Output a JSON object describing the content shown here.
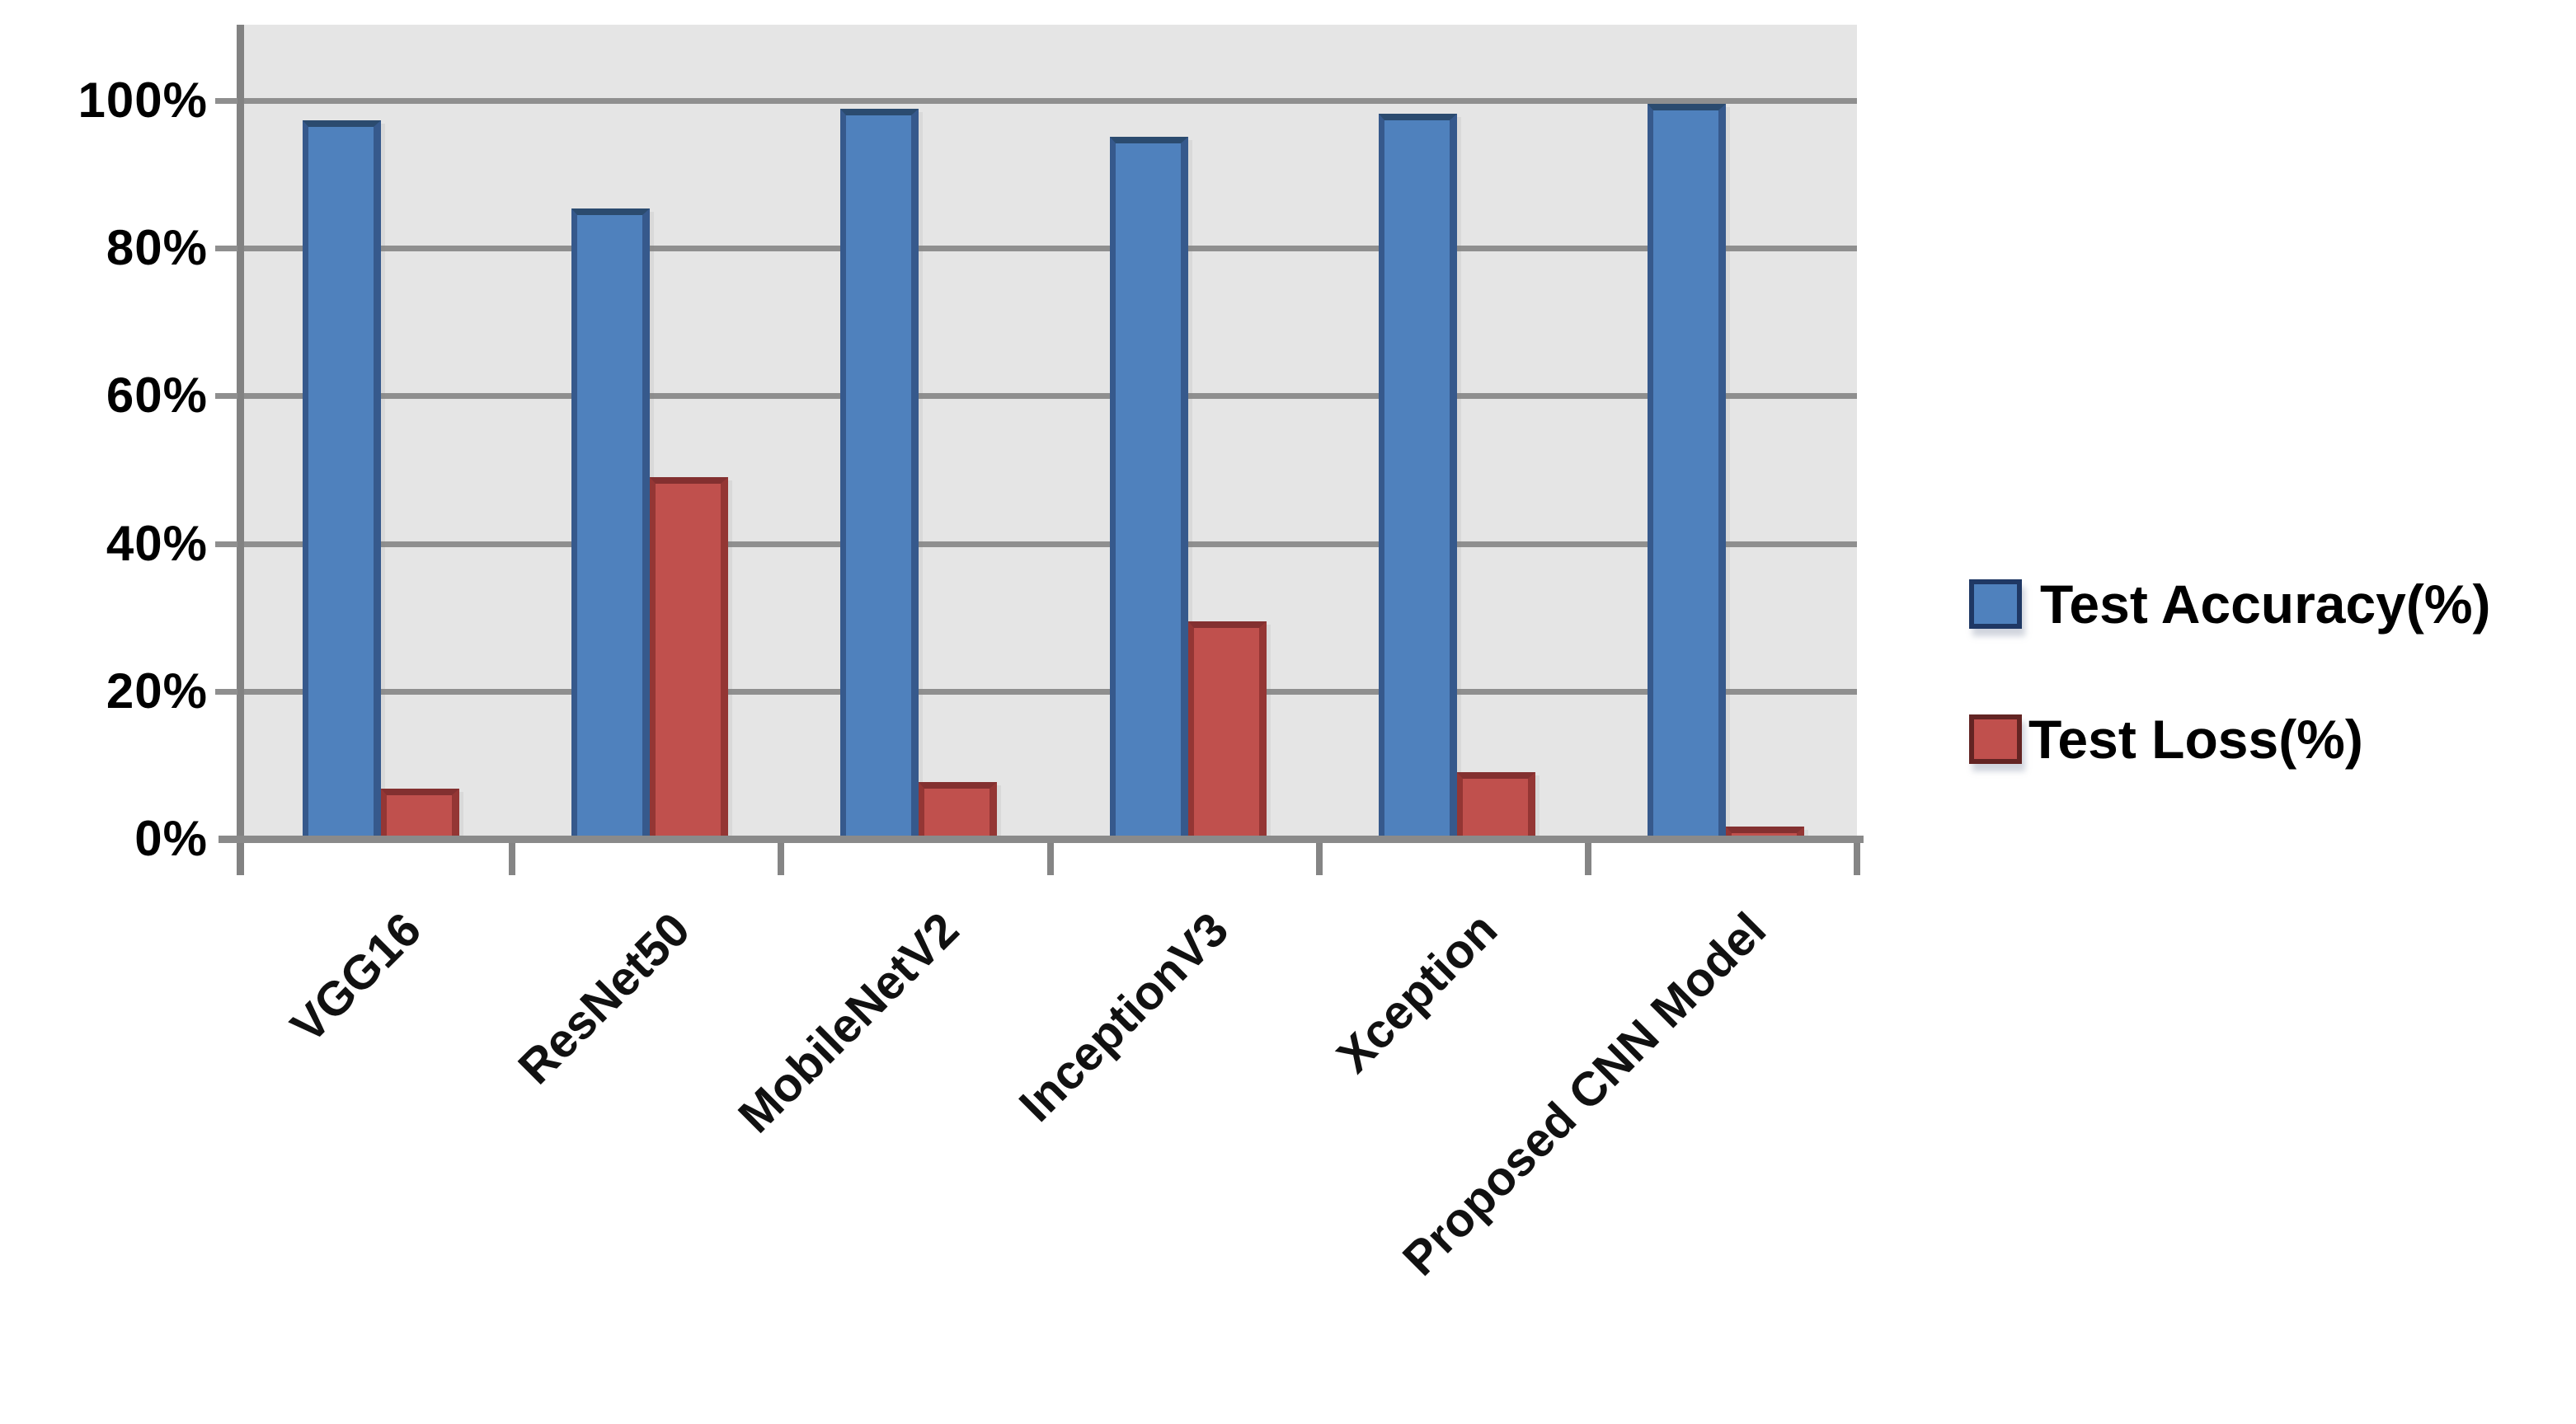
{
  "chart_data": {
    "type": "bar",
    "title": "",
    "categories": [
      "VGG16",
      "ResNet50",
      "MobileNetV2",
      "InceptionV3",
      "Xception",
      "Proposed CNN Model"
    ],
    "series": [
      {
        "name": "Test Accuracy(%)",
        "color": "#4F81BD",
        "edge_top": "#2B4B6F",
        "edge_side": "#36598C",
        "legend_border": "#1F3864",
        "values": [
          97.3,
          85.4,
          98.9,
          95.1,
          98.2,
          99.6
        ]
      },
      {
        "name": "Test Loss(%)",
        "color": "#C0504D",
        "edge_top": "#833030",
        "edge_side": "#943634",
        "legend_border": "#632423",
        "values": [
          6.8,
          49.0,
          7.7,
          29.5,
          9.0,
          1.7
        ]
      }
    ],
    "y_axis": {
      "ticks": [
        "0%",
        "20%",
        "40%",
        "60%",
        "80%",
        "100%"
      ],
      "min": 0,
      "max": 100,
      "major_unit": 20
    },
    "x_axis": {
      "label_rotation_deg": -45
    },
    "legend_position": "right-middle",
    "grid": true,
    "plot_bg": "#E5E5E5",
    "gridline_color": "#8F8F8F",
    "axis_color": "#828282"
  }
}
